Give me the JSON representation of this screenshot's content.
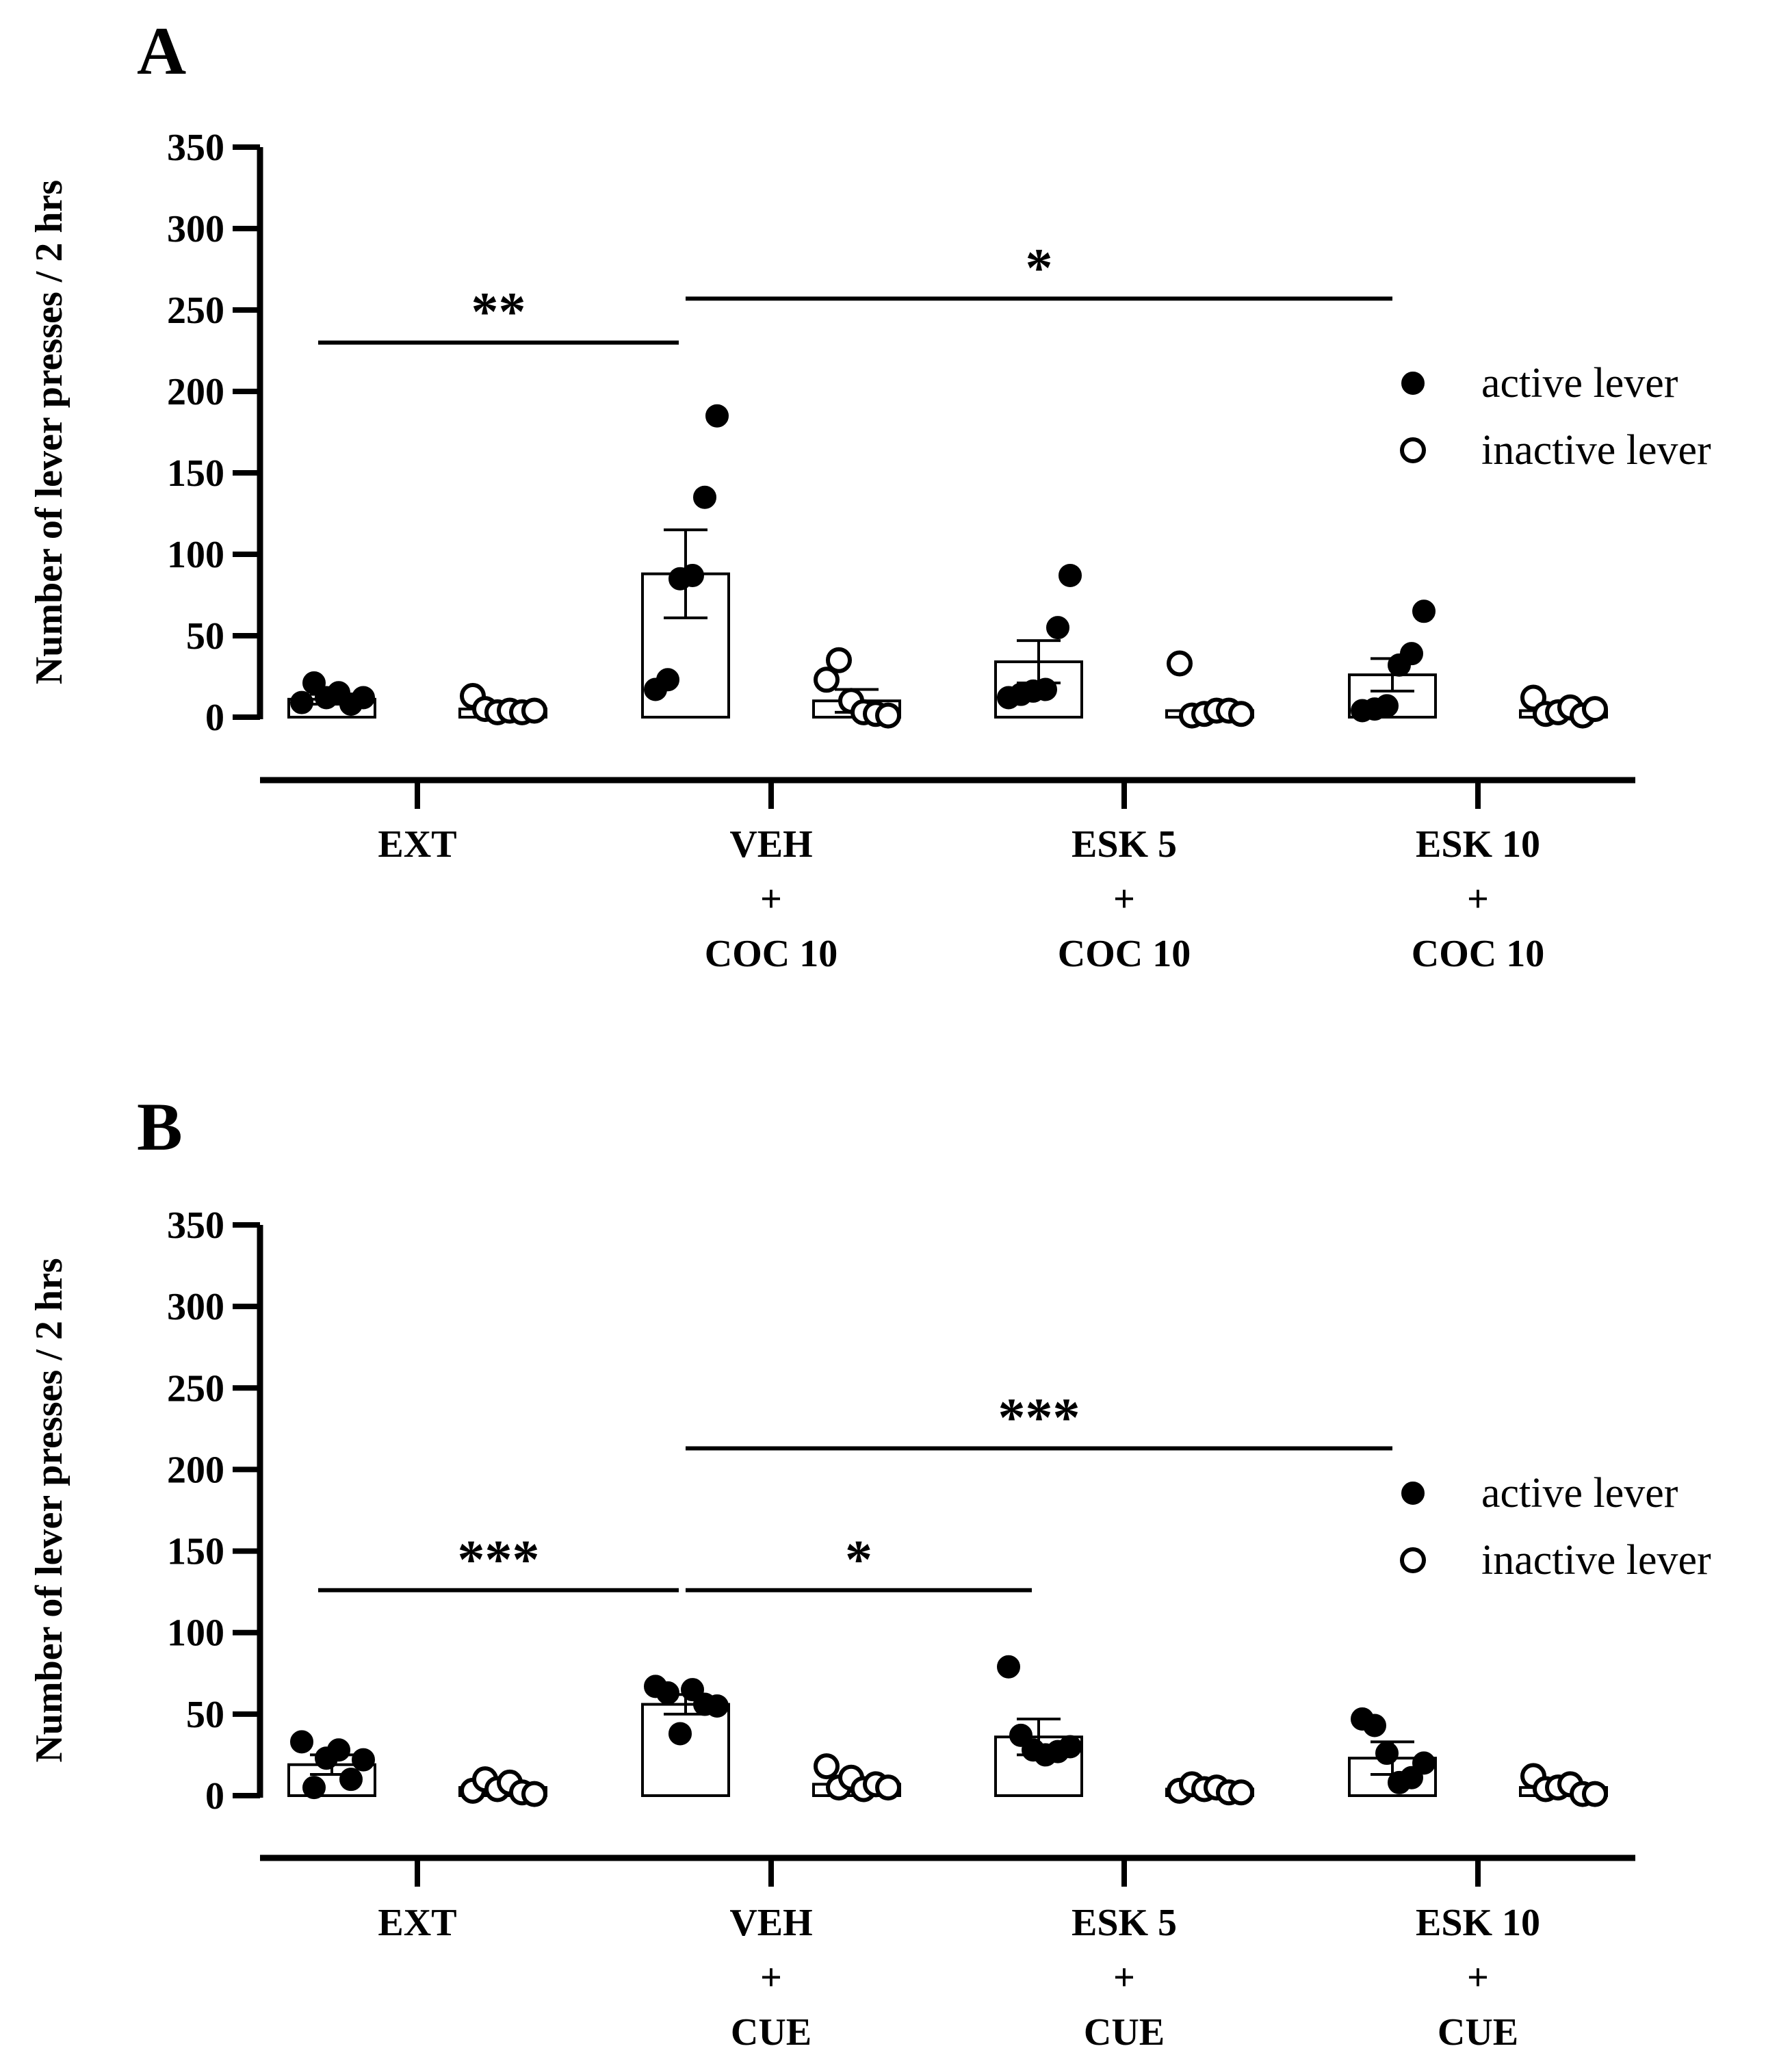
{
  "colors": {
    "ink": "#000000",
    "background": "#ffffff"
  },
  "chart_data": [
    {
      "type": "bar",
      "panel": "A",
      "ylabel": "Number of lever presses / 2 hrs",
      "ylim": [
        0,
        350
      ],
      "yticks": [
        0,
        50,
        100,
        150,
        200,
        250,
        300,
        350
      ],
      "categories": [
        {
          "lines": [
            "EXT"
          ]
        },
        {
          "lines": [
            "VEH",
            "+",
            "COC 10"
          ]
        },
        {
          "lines": [
            "ESK 5",
            "+",
            "COC 10"
          ]
        },
        {
          "lines": [
            "ESK 10",
            "+",
            "COC 10"
          ]
        }
      ],
      "series": [
        {
          "name": "active lever",
          "filled": true,
          "means": [
            11,
            88,
            34,
            26
          ],
          "sem": [
            3,
            27,
            13,
            10
          ],
          "points": [
            [
              9,
              21,
              12,
              15,
              8,
              12
            ],
            [
              17,
              23,
              85,
              87,
              135,
              185
            ],
            [
              12,
              14,
              16,
              17,
              55,
              87
            ],
            [
              4,
              5,
              7,
              32,
              39,
              65
            ]
          ]
        },
        {
          "name": "inactive lever",
          "filled": false,
          "means": [
            5,
            10,
            4,
            4
          ],
          "sem": [
            2,
            7,
            3,
            2
          ],
          "points": [
            [
              13,
              5,
              3,
              4,
              3,
              4
            ],
            [
              23,
              35,
              10,
              3,
              2,
              1
            ],
            [
              33,
              1,
              2,
              4,
              4,
              2
            ],
            [
              12,
              2,
              3,
              6,
              1,
              5
            ]
          ]
        }
      ],
      "significance": [
        {
          "label": "**",
          "from_category": 0,
          "to_category": 1,
          "level": 230
        },
        {
          "label": "*",
          "from_category": 1,
          "to_category": 3,
          "level": 257
        }
      ],
      "legend": {
        "position": "top-right",
        "entries": [
          "active lever",
          "inactive lever"
        ]
      }
    },
    {
      "type": "bar",
      "panel": "B",
      "ylabel": "Number of lever presses / 2 hrs",
      "ylim": [
        0,
        350
      ],
      "yticks": [
        0,
        50,
        100,
        150,
        200,
        250,
        300,
        350
      ],
      "categories": [
        {
          "lines": [
            "EXT"
          ]
        },
        {
          "lines": [
            "VEH",
            "+",
            "CUE"
          ]
        },
        {
          "lines": [
            "ESK 5",
            "+",
            "CUE"
          ]
        },
        {
          "lines": [
            "ESK 10",
            "+",
            "CUE"
          ]
        }
      ],
      "series": [
        {
          "name": "active lever",
          "filled": true,
          "means": [
            19,
            56,
            36,
            23
          ],
          "sem": [
            6,
            6,
            11,
            10
          ],
          "points": [
            [
              33,
              5,
              23,
              28,
              10,
              22
            ],
            [
              67,
              63,
              38,
              65,
              56,
              55
            ],
            [
              79,
              37,
              28,
              25,
              27,
              30
            ],
            [
              47,
              43,
              26,
              8,
              11,
              20
            ]
          ]
        },
        {
          "name": "inactive lever",
          "filled": false,
          "means": [
            5,
            7,
            4,
            5
          ],
          "sem": [
            2,
            2,
            1,
            2
          ],
          "points": [
            [
              3,
              10,
              4,
              8,
              2,
              1
            ],
            [
              18,
              5,
              11,
              4,
              7,
              5
            ],
            [
              3,
              7,
              4,
              5,
              2,
              2
            ],
            [
              12,
              4,
              5,
              7,
              1,
              1
            ]
          ]
        }
      ],
      "significance": [
        {
          "label": "***",
          "from_category": 0,
          "to_category": 1,
          "level": 126
        },
        {
          "label": "*",
          "from_category": 1,
          "to_category": 2,
          "level": 126
        },
        {
          "label": "***",
          "from_category": 1,
          "to_category": 3,
          "level": 213
        }
      ],
      "legend": {
        "position": "top-right",
        "entries": [
          "active lever",
          "inactive lever"
        ]
      }
    }
  ]
}
